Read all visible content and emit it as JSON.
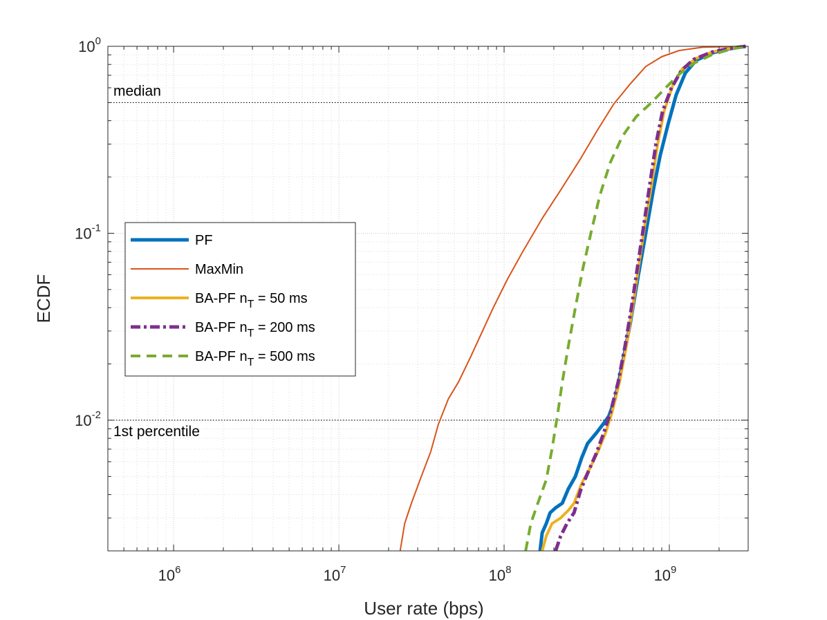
{
  "chart_data": {
    "type": "line",
    "title": "",
    "xlabel": "User rate (bps)",
    "ylabel": "ECDF",
    "xscale": "log",
    "yscale": "log",
    "xlim": [
      400000,
      3000000000
    ],
    "ylim": [
      0.002,
      1
    ],
    "grid": true,
    "x_ticks": [
      {
        "value": 1000000,
        "base": "10",
        "exp": "6"
      },
      {
        "value": 10000000,
        "base": "10",
        "exp": "7"
      },
      {
        "value": 100000000,
        "base": "10",
        "exp": "8"
      },
      {
        "value": 1000000000,
        "base": "10",
        "exp": "9"
      }
    ],
    "y_ticks": [
      {
        "value": 0.01,
        "base": "10",
        "exp": "-2"
      },
      {
        "value": 0.1,
        "base": "10",
        "exp": "-1"
      },
      {
        "value": 1,
        "base": "10",
        "exp": "0"
      }
    ],
    "reference_lines": [
      {
        "y": 0.5,
        "label": "median"
      },
      {
        "y": 0.01,
        "label": "1st percentile"
      }
    ],
    "legend": {
      "position": "middle-left",
      "entries": [
        {
          "name": "PF",
          "sub": ""
        },
        {
          "name": "MaxMin",
          "sub": ""
        },
        {
          "name": "BA-PF n",
          "sub": "T",
          "suffix": " = 50 ms"
        },
        {
          "name": "BA-PF n",
          "sub": "T",
          "suffix": " = 200 ms"
        },
        {
          "name": "BA-PF n",
          "sub": "T",
          "suffix": " = 500 ms"
        }
      ]
    },
    "series": [
      {
        "name": "PF",
        "color": "#0072BD",
        "width": 5,
        "dash": "",
        "points": [
          [
            165000000.0,
            0.002
          ],
          [
            170000000.0,
            0.0025
          ],
          [
            180000000.0,
            0.0028
          ],
          [
            190000000.0,
            0.0032
          ],
          [
            205000000.0,
            0.0034
          ],
          [
            225000000.0,
            0.0036
          ],
          [
            245000000.0,
            0.0043
          ],
          [
            270000000.0,
            0.005
          ],
          [
            295000000.0,
            0.0063
          ],
          [
            320000000.0,
            0.0075
          ],
          [
            360000000.0,
            0.0085
          ],
          [
            400000000.0,
            0.0096
          ],
          [
            430000000.0,
            0.0105
          ],
          [
            470000000.0,
            0.013
          ],
          [
            520000000.0,
            0.02
          ],
          [
            580000000.0,
            0.033
          ],
          [
            650000000.0,
            0.06
          ],
          [
            720000000.0,
            0.1
          ],
          [
            800000000.0,
            0.17
          ],
          [
            880000000.0,
            0.26
          ],
          [
            980000000.0,
            0.38
          ],
          [
            1100000000.0,
            0.55
          ],
          [
            1250000000.0,
            0.72
          ],
          [
            1450000000.0,
            0.84
          ],
          [
            1800000000.0,
            0.92
          ],
          [
            2300000000.0,
            0.97
          ],
          [
            2900000000.0,
            1.0
          ]
        ]
      },
      {
        "name": "MaxMin",
        "color": "#D95319",
        "width": 2,
        "dash": "",
        "points": [
          [
            23500000.0,
            0.002
          ],
          [
            25000000.0,
            0.0028
          ],
          [
            27500000.0,
            0.0036
          ],
          [
            31000000.0,
            0.0048
          ],
          [
            36000000.0,
            0.0068
          ],
          [
            40000000.0,
            0.0095
          ],
          [
            46000000.0,
            0.013
          ],
          [
            53000000.0,
            0.016
          ],
          [
            63000000.0,
            0.022
          ],
          [
            74000000.0,
            0.03
          ],
          [
            86000000.0,
            0.04
          ],
          [
            105000000.0,
            0.057
          ],
          [
            130000000.0,
            0.08
          ],
          [
            170000000.0,
            0.12
          ],
          [
            220000000.0,
            0.17
          ],
          [
            290000000.0,
            0.25
          ],
          [
            370000000.0,
            0.36
          ],
          [
            460000000.0,
            0.49
          ],
          [
            580000000.0,
            0.63
          ],
          [
            720000000.0,
            0.78
          ],
          [
            900000000.0,
            0.88
          ],
          [
            1150000000.0,
            0.95
          ],
          [
            1600000000.0,
            0.99
          ],
          [
            2900000000.0,
            1.0
          ]
        ]
      },
      {
        "name": "BA-PF n_T = 50 ms",
        "color": "#EDB120",
        "width": 4,
        "dash": "",
        "points": [
          [
            170000000.0,
            0.002
          ],
          [
            180000000.0,
            0.0024
          ],
          [
            195000000.0,
            0.0028
          ],
          [
            220000000.0,
            0.003
          ],
          [
            245000000.0,
            0.0033
          ],
          [
            265000000.0,
            0.0036
          ],
          [
            295000000.0,
            0.0046
          ],
          [
            330000000.0,
            0.0055
          ],
          [
            370000000.0,
            0.0068
          ],
          [
            410000000.0,
            0.0085
          ],
          [
            450000000.0,
            0.011
          ],
          [
            500000000.0,
            0.016
          ],
          [
            550000000.0,
            0.025
          ],
          [
            600000000.0,
            0.04
          ],
          [
            650000000.0,
            0.065
          ],
          [
            710000000.0,
            0.11
          ],
          [
            780000000.0,
            0.18
          ],
          [
            850000000.0,
            0.3
          ],
          [
            930000000.0,
            0.45
          ],
          [
            1050000000.0,
            0.62
          ],
          [
            1200000000.0,
            0.76
          ],
          [
            1450000000.0,
            0.86
          ],
          [
            1800000000.0,
            0.93
          ],
          [
            2400000000.0,
            0.98
          ],
          [
            2900000000.0,
            1.0
          ]
        ]
      },
      {
        "name": "BA-PF n_T = 200 ms",
        "color": "#7E2F8E",
        "width": 5,
        "dash": "14,5,4,5",
        "points": [
          [
            205000000.0,
            0.002
          ],
          [
            220000000.0,
            0.0024
          ],
          [
            240000000.0,
            0.0028
          ],
          [
            265000000.0,
            0.0032
          ],
          [
            290000000.0,
            0.0042
          ],
          [
            320000000.0,
            0.0052
          ],
          [
            360000000.0,
            0.0066
          ],
          [
            400000000.0,
            0.0085
          ],
          [
            440000000.0,
            0.011
          ],
          [
            490000000.0,
            0.016
          ],
          [
            540000000.0,
            0.025
          ],
          [
            590000000.0,
            0.04
          ],
          [
            640000000.0,
            0.065
          ],
          [
            700000000.0,
            0.11
          ],
          [
            760000000.0,
            0.18
          ],
          [
            830000000.0,
            0.3
          ],
          [
            910000000.0,
            0.45
          ],
          [
            1030000000.0,
            0.6
          ],
          [
            1180000000.0,
            0.74
          ],
          [
            1400000000.0,
            0.85
          ],
          [
            1800000000.0,
            0.93
          ],
          [
            2400000000.0,
            0.98
          ],
          [
            2900000000.0,
            1.0
          ]
        ]
      },
      {
        "name": "BA-PF n_T = 500 ms",
        "color": "#77AC30",
        "width": 4,
        "dash": "14,9",
        "points": [
          [
            135000000.0,
            0.002
          ],
          [
            145000000.0,
            0.0028
          ],
          [
            160000000.0,
            0.0036
          ],
          [
            180000000.0,
            0.0048
          ],
          [
            195000000.0,
            0.007
          ],
          [
            210000000.0,
            0.0105
          ],
          [
            225000000.0,
            0.016
          ],
          [
            245000000.0,
            0.025
          ],
          [
            270000000.0,
            0.04
          ],
          [
            300000000.0,
            0.065
          ],
          [
            335000000.0,
            0.1
          ],
          [
            380000000.0,
            0.16
          ],
          [
            440000000.0,
            0.24
          ],
          [
            520000000.0,
            0.33
          ],
          [
            630000000.0,
            0.42
          ],
          [
            780000000.0,
            0.5
          ],
          [
            950000000.0,
            0.6
          ],
          [
            1150000000.0,
            0.71
          ],
          [
            1400000000.0,
            0.81
          ],
          [
            1800000000.0,
            0.9
          ],
          [
            2400000000.0,
            0.97
          ],
          [
            2900000000.0,
            1.0
          ]
        ]
      }
    ]
  }
}
